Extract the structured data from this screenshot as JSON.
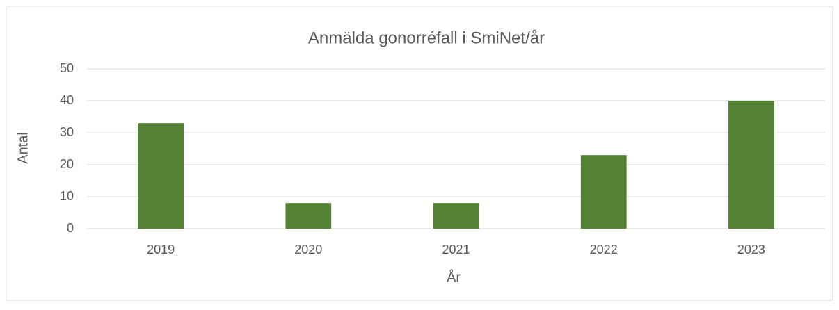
{
  "chart_data": {
    "type": "bar",
    "title": "Anmälda gonorréfall i SmiNet/år",
    "x_label": "År",
    "y_label": "Antal",
    "categories": [
      "2019",
      "2020",
      "2021",
      "2022",
      "2023"
    ],
    "values": [
      33,
      8,
      8,
      23,
      40
    ],
    "color": "#548235",
    "ylim": [
      0,
      50
    ],
    "yticks": [
      0,
      10,
      20,
      30,
      40,
      50
    ],
    "grid": true
  }
}
